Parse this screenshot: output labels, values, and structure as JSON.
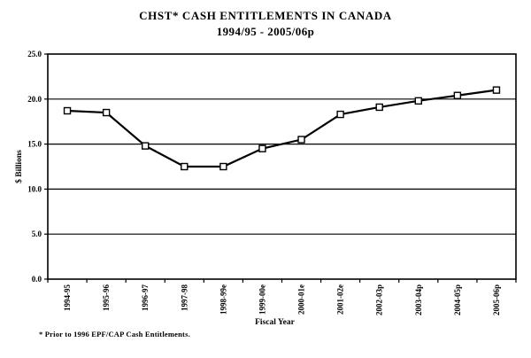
{
  "figure": {
    "background": "#ffffff",
    "text_color": "#000000"
  },
  "chart_data": {
    "type": "line",
    "title": "CHST* CASH ENTITLEMENTS IN CANADA",
    "subtitle": "1994/95 - 2005/06p",
    "xlabel": "Fiscal Year",
    "ylabel": "$ Billions",
    "categories": [
      "1994-95",
      "1995-96",
      "1996-97",
      "1997-98",
      "1998-99e",
      "1999-00e",
      "2000-01e",
      "2001-02e",
      "2002-03p",
      "2003-04p",
      "2004-05p",
      "2005-06p"
    ],
    "series": [
      {
        "name": "CHST cash entitlements",
        "values": [
          18.7,
          18.5,
          14.8,
          12.5,
          12.5,
          14.5,
          15.5,
          18.3,
          19.1,
          19.8,
          20.4,
          21.0
        ]
      }
    ],
    "ylim": [
      0,
      25
    ],
    "ytick_interval": 5,
    "ytick_labels": [
      "0.0",
      "5.0",
      "10.0",
      "15.0",
      "20.0",
      "25.0"
    ],
    "grid": "horizontal",
    "legend": "none",
    "marker": "open-square",
    "line_color": "#000000",
    "marker_fill": "#ffffff",
    "grid_color": "#000000",
    "footnote": "* Prior to 1996 EPF/CAP Cash Entitlements."
  }
}
